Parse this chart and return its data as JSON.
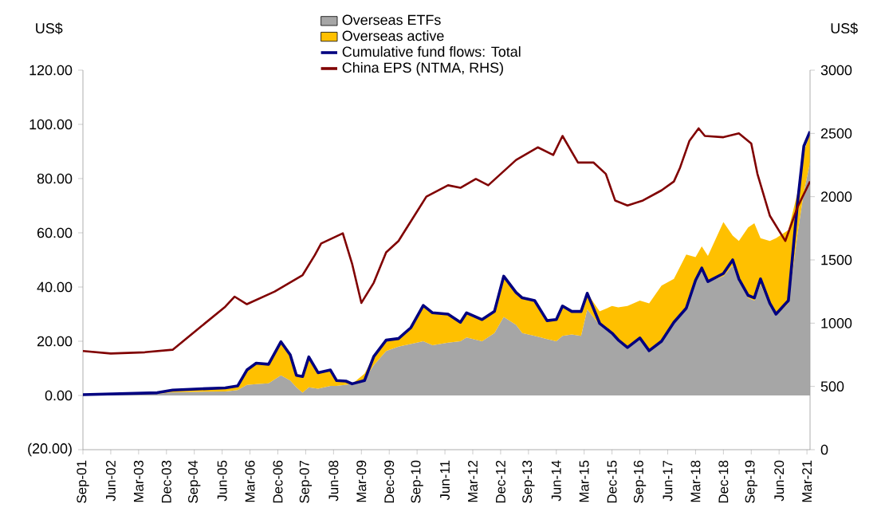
{
  "chart_data": {
    "type": "area",
    "stacked": true,
    "legend": "top",
    "grid": false,
    "ylabel": "US$",
    "y2label": "US$",
    "xlim": [
      "2001-09",
      "2021-04"
    ],
    "ylim": [
      -20,
      120
    ],
    "y2lim": [
      0,
      3000
    ],
    "xticks": [
      {
        "value": "2001-09",
        "label": "Sep-01"
      },
      {
        "value": "2002-06",
        "label": "Jun-02"
      },
      {
        "value": "2003-03",
        "label": "Mar-03"
      },
      {
        "value": "2003-12",
        "label": "Dec-03"
      },
      {
        "value": "2004-09",
        "label": "Sep-04"
      },
      {
        "value": "2005-06",
        "label": "Jun-05"
      },
      {
        "value": "2006-03",
        "label": "Mar-06"
      },
      {
        "value": "2006-12",
        "label": "Dec-06"
      },
      {
        "value": "2007-09",
        "label": "Sep-07"
      },
      {
        "value": "2008-06",
        "label": "Jun-08"
      },
      {
        "value": "2009-03",
        "label": "Mar-09"
      },
      {
        "value": "2009-12",
        "label": "Dec-09"
      },
      {
        "value": "2010-09",
        "label": "Sep-10"
      },
      {
        "value": "2011-06",
        "label": "Jun-11"
      },
      {
        "value": "2012-03",
        "label": "Mar-12"
      },
      {
        "value": "2012-12",
        "label": "Dec-12"
      },
      {
        "value": "2013-09",
        "label": "Sep-13"
      },
      {
        "value": "2014-06",
        "label": "Jun-14"
      },
      {
        "value": "2015-03",
        "label": "Mar-15"
      },
      {
        "value": "2015-12",
        "label": "Dec-15"
      },
      {
        "value": "2016-09",
        "label": "Sep-16"
      },
      {
        "value": "2017-06",
        "label": "Jun-17"
      },
      {
        "value": "2018-03",
        "label": "Mar-18"
      },
      {
        "value": "2018-12",
        "label": "Dec-18"
      },
      {
        "value": "2019-09",
        "label": "Sep-19"
      },
      {
        "value": "2020-06",
        "label": "Jun-20"
      },
      {
        "value": "2021-03",
        "label": "Mar-21"
      }
    ],
    "yticks": [
      {
        "value": -20,
        "label": "(20.00)"
      },
      {
        "value": 0,
        "label": "0.00"
      },
      {
        "value": 20,
        "label": "20.00"
      },
      {
        "value": 40,
        "label": "40.00"
      },
      {
        "value": 60,
        "label": "60.00"
      },
      {
        "value": 80,
        "label": "80.00"
      },
      {
        "value": 100,
        "label": "100.00"
      },
      {
        "value": 120,
        "label": "120.00"
      }
    ],
    "y2ticks": [
      0,
      500,
      1000,
      1500,
      2000,
      2500,
      3000
    ],
    "x": [
      "2001-09",
      "2003-09",
      "2004-02",
      "2005-07",
      "2005-11",
      "2006-02",
      "2006-05",
      "2006-09",
      "2007-01",
      "2007-04",
      "2007-06",
      "2007-08",
      "2007-10",
      "2008-01",
      "2008-05",
      "2008-07",
      "2008-10",
      "2008-12",
      "2009-04",
      "2009-07",
      "2009-11",
      "2010-03",
      "2010-07",
      "2010-11",
      "2011-02",
      "2011-07",
      "2011-11",
      "2012-01",
      "2012-06",
      "2012-10",
      "2013-01",
      "2013-05",
      "2013-07",
      "2013-11",
      "2014-03",
      "2014-06",
      "2014-08",
      "2014-11",
      "2015-02",
      "2015-04",
      "2015-08",
      "2015-12",
      "2016-02",
      "2016-05",
      "2016-09",
      "2016-12",
      "2017-04",
      "2017-08",
      "2017-12",
      "2018-03",
      "2018-05",
      "2018-07",
      "2018-12",
      "2019-03",
      "2019-05",
      "2019-08",
      "2019-10",
      "2019-12",
      "2020-03",
      "2020-05",
      "2020-09",
      "2020-12",
      "2021-02",
      "2021-04"
    ],
    "series": [
      {
        "name": "Overseas ETFs",
        "color": "#a6a6a6",
        "values": [
          0.2,
          0.6,
          1.2,
          1.5,
          2,
          3.9,
          4.2,
          4.5,
          7.4,
          5.5,
          3,
          1,
          3,
          2.5,
          3.5,
          3.5,
          4,
          4.3,
          6,
          11.2,
          16.4,
          18,
          19,
          20,
          18.5,
          19.5,
          20,
          21.4,
          20,
          23,
          29,
          26,
          23,
          22,
          20.8,
          20,
          22,
          22.5,
          22,
          31.8,
          26,
          23,
          20,
          17.5,
          21,
          16.5,
          20,
          27,
          32,
          42,
          46,
          42,
          44,
          48,
          42,
          36,
          35,
          41,
          33,
          29.5,
          34,
          60,
          75,
          86
        ]
      },
      {
        "name": "Overseas active",
        "color": "#ffc000",
        "values": [
          0.1,
          0.4,
          0.8,
          1.3,
          1.5,
          5.5,
          7.7,
          7,
          12.4,
          9.5,
          4.4,
          6,
          11.2,
          5.9,
          5.9,
          2,
          1.3,
          0,
          2,
          3.2,
          4,
          3,
          6,
          13.2,
          12,
          10.5,
          7,
          9.1,
          8,
          8,
          15,
          12,
          13,
          13,
          6.8,
          8,
          11,
          8.5,
          9,
          5.9,
          5,
          10,
          12.5,
          15.5,
          14,
          17.5,
          20.5,
          16,
          20,
          9,
          9,
          9.5,
          20,
          11,
          15,
          26,
          28.5,
          17,
          24,
          28.5,
          27,
          15,
          15,
          10.5
        ]
      },
      {
        "name": "Cumulative fund flows: Total",
        "type": "line",
        "color": "#000080",
        "values": [
          0.3,
          1.0,
          2.0,
          2.8,
          3.5,
          9.4,
          11.9,
          11.5,
          19.8,
          15,
          7.4,
          7,
          14.2,
          8.4,
          9.4,
          5.5,
          5.3,
          4.3,
          5.5,
          14.4,
          20.4,
          21,
          25,
          33.2,
          30.5,
          30,
          27,
          30.5,
          28,
          31,
          44,
          38,
          36,
          35,
          27.6,
          28,
          33,
          31,
          31,
          37.7,
          26.6,
          23,
          20.5,
          17.7,
          21.2,
          16.5,
          20,
          27,
          32.2,
          42.5,
          47,
          42,
          45,
          50,
          43,
          36.9,
          36,
          43,
          34,
          30,
          35,
          71.6,
          92,
          97.4
        ]
      },
      {
        "name": "China EPS (NTMA, RHS)",
        "type": "line",
        "axis": "y2",
        "color": "#800000",
        "x": [
          "2001-09",
          "2002-06",
          "2003-05",
          "2004-02",
          "2004-10",
          "2005-07",
          "2005-10",
          "2006-02",
          "2006-11",
          "2007-08",
          "2007-12",
          "2008-02",
          "2008-09",
          "2008-12",
          "2009-03",
          "2009-07",
          "2009-11",
          "2010-03",
          "2010-12",
          "2011-07",
          "2011-11",
          "2012-04",
          "2012-08",
          "2013-05",
          "2013-12",
          "2014-05",
          "2014-08",
          "2015-01",
          "2015-06",
          "2015-10",
          "2016-01",
          "2016-05",
          "2016-10",
          "2017-04",
          "2017-08",
          "2017-10",
          "2018-01",
          "2018-04",
          "2018-06",
          "2018-12",
          "2019-05",
          "2019-09",
          "2019-11",
          "2020-03",
          "2020-08",
          "2020-12",
          "2021-04"
        ],
        "values": [
          780,
          760,
          770,
          790,
          950,
          1130,
          1210,
          1150,
          1250,
          1380,
          1540,
          1630,
          1710,
          1470,
          1160,
          1320,
          1560,
          1650,
          2000,
          2090,
          2070,
          2140,
          2090,
          2290,
          2390,
          2330,
          2480,
          2270,
          2270,
          2180,
          1970,
          1930,
          1970,
          2050,
          2120,
          2230,
          2440,
          2540,
          2480,
          2470,
          2500,
          2420,
          2180,
          1850,
          1650,
          1920,
          2120
        ]
      }
    ]
  }
}
